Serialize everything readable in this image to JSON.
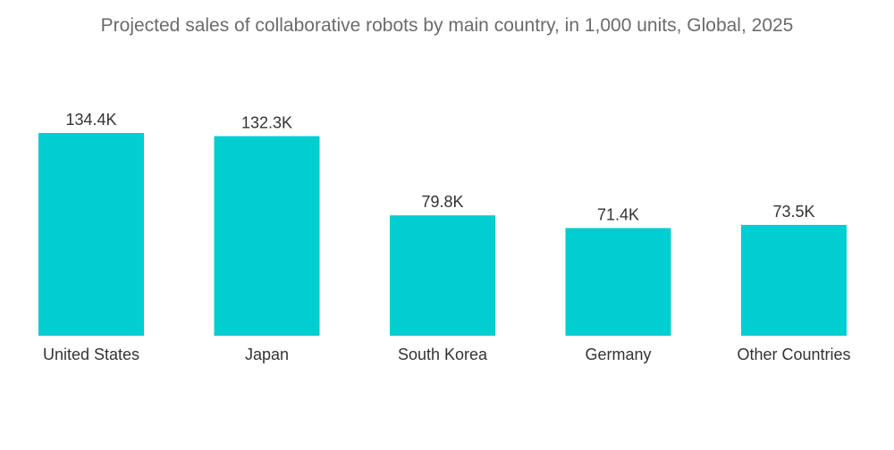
{
  "chart_data": {
    "type": "bar",
    "title": "Projected sales of collaborative robots by main country, in 1,000 units, Global, 2025",
    "categories": [
      "United States",
      "Japan",
      "South Korea",
      "Germany",
      "Other Countries"
    ],
    "values": [
      134.4,
      132.3,
      79.8,
      71.4,
      73.5
    ],
    "data_labels": [
      "134.4K",
      "132.3K",
      "79.8K",
      "71.4K",
      "73.5K"
    ],
    "ylim": [
      0,
      134.4
    ],
    "grid": false,
    "bar_color": "#00ced1"
  }
}
